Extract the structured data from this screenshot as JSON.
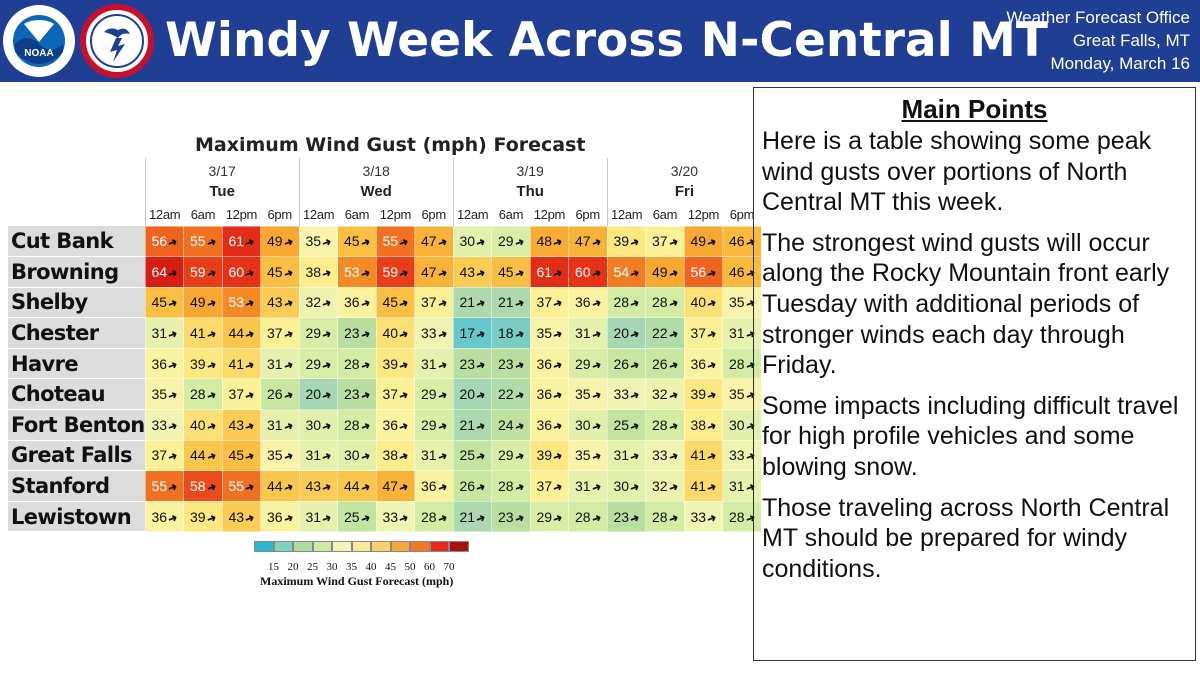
{
  "header": {
    "title": "Windy Week Across N-Central MT",
    "office_lines": [
      "Weather Forecast Office",
      "Great Falls, MT",
      "Monday, March 16"
    ],
    "logos": [
      {
        "name": "noaa-logo",
        "text": "NOAA"
      },
      {
        "name": "nws-logo",
        "text": "NATIONAL WEATHER SERVICE"
      }
    ],
    "colors": {
      "banner": "#1e3f94"
    }
  },
  "chart": {
    "title": "Maximum Wind Gust (mph) Forecast",
    "days": [
      {
        "date": "3/17",
        "day": "Tue"
      },
      {
        "date": "3/18",
        "day": "Wed"
      },
      {
        "date": "3/19",
        "day": "Thu"
      },
      {
        "date": "3/20",
        "day": "Fri"
      }
    ],
    "times": [
      "12am",
      "6am",
      "12pm",
      "6pm"
    ],
    "rows": [
      {
        "location": "Cut Bank",
        "values": [
          56,
          55,
          61,
          49,
          35,
          45,
          55,
          47,
          30,
          29,
          48,
          47,
          39,
          37,
          49,
          46
        ]
      },
      {
        "location": "Browning",
        "values": [
          64,
          59,
          60,
          45,
          38,
          53,
          59,
          47,
          43,
          45,
          61,
          60,
          54,
          49,
          56,
          46
        ]
      },
      {
        "location": "Shelby",
        "values": [
          45,
          49,
          53,
          43,
          32,
          36,
          45,
          37,
          21,
          21,
          37,
          36,
          28,
          28,
          40,
          35
        ]
      },
      {
        "location": "Chester",
        "values": [
          31,
          41,
          44,
          37,
          29,
          23,
          40,
          33,
          17,
          18,
          35,
          31,
          20,
          22,
          37,
          31
        ]
      },
      {
        "location": "Havre",
        "values": [
          36,
          39,
          41,
          31,
          29,
          28,
          39,
          31,
          23,
          23,
          36,
          29,
          26,
          26,
          36,
          28
        ]
      },
      {
        "location": "Choteau",
        "values": [
          35,
          28,
          37,
          26,
          20,
          23,
          37,
          29,
          20,
          22,
          36,
          35,
          33,
          32,
          39,
          35
        ]
      },
      {
        "location": "Fort Benton",
        "values": [
          33,
          40,
          43,
          31,
          30,
          28,
          36,
          29,
          21,
          24,
          36,
          30,
          25,
          28,
          38,
          30
        ]
      },
      {
        "location": "Great Falls",
        "values": [
          37,
          44,
          45,
          35,
          31,
          30,
          38,
          31,
          25,
          29,
          39,
          35,
          31,
          33,
          41,
          33
        ]
      },
      {
        "location": "Stanford",
        "values": [
          55,
          58,
          55,
          44,
          43,
          44,
          47,
          36,
          26,
          28,
          37,
          31,
          30,
          32,
          41,
          31
        ]
      },
      {
        "location": "Lewistown",
        "values": [
          36,
          39,
          43,
          36,
          31,
          25,
          33,
          28,
          21,
          23,
          29,
          28,
          23,
          28,
          33,
          28
        ]
      }
    ],
    "arrow_icon": "wind-direction-arrow-icon",
    "legend": {
      "ticks": [
        "15",
        "20",
        "25",
        "30",
        "35",
        "40",
        "45",
        "50",
        "60",
        "70"
      ],
      "title": "Maximum Wind Gust Forecast (mph)",
      "colors": [
        "#2bb6c9",
        "#7dd3c0",
        "#a9dca0",
        "#cfeaa6",
        "#f1f6b6",
        "#fbe99a",
        "#f9d06e",
        "#f5a93c",
        "#f07826",
        "#e8281e",
        "#a51410"
      ]
    }
  },
  "points": {
    "title": "Main Points",
    "items": [
      "Here is a table showing some peak wind gusts over portions of North Central MT this week.",
      "The strongest wind gusts will occur along the Rocky Mountain front early Tuesday with additional periods of stronger winds each day through Friday.",
      "Some impacts including difficult travel for high profile vehicles and some blowing snow.",
      "Those traveling across North Central MT should be prepared for windy conditions."
    ]
  }
}
